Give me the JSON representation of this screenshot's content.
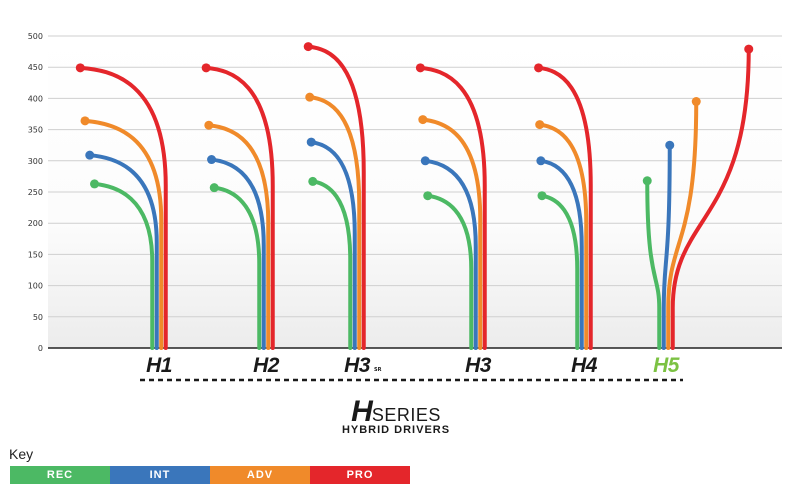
{
  "chart_data": {
    "type": "line",
    "title": "",
    "xlabel": "",
    "ylabel": "",
    "ylim": [
      0,
      500
    ],
    "yticks": [
      0,
      50,
      100,
      150,
      200,
      250,
      300,
      350,
      400,
      450,
      500
    ],
    "grid": true,
    "categories": [
      "H1",
      "H2",
      "H3",
      "H3",
      "H4",
      "H5"
    ],
    "category_colors": [
      "#1a1a1a",
      "#1a1a1a",
      "#1a1a1a",
      "#1a1a1a",
      "#1a1a1a",
      "#7cc243"
    ],
    "category_marks": [
      "",
      "",
      "SR",
      "",
      "",
      ""
    ],
    "series": [
      {
        "name": "REC",
        "color": "#4cb964",
        "values": [
          263,
          257,
          267,
          244,
          244,
          268
        ]
      },
      {
        "name": "INT",
        "color": "#3a76bb",
        "values": [
          309,
          302,
          330,
          300,
          300,
          325
        ]
      },
      {
        "name": "ADV",
        "color": "#f08a2a",
        "values": [
          364,
          357,
          402,
          366,
          358,
          395
        ]
      },
      {
        "name": "PRO",
        "color": "#e4262b",
        "values": [
          449,
          449,
          483,
          449,
          449,
          479
        ]
      }
    ],
    "legend": {
      "title": "Key",
      "placement": "bottom-left"
    }
  },
  "brand": {
    "letter": "H",
    "word": "SERIES",
    "subtitle": "HYBRID DRIVERS"
  }
}
